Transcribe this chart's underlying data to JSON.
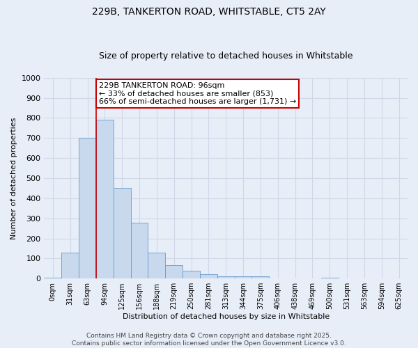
{
  "title": "229B, TANKERTON ROAD, WHITSTABLE, CT5 2AY",
  "subtitle": "Size of property relative to detached houses in Whitstable",
  "xlabel": "Distribution of detached houses by size in Whitstable",
  "ylabel": "Number of detached properties",
  "bar_color": "#c8d9ee",
  "bar_edge_color": "#6699cc",
  "categories": [
    "0sqm",
    "31sqm",
    "63sqm",
    "94sqm",
    "125sqm",
    "156sqm",
    "188sqm",
    "219sqm",
    "250sqm",
    "281sqm",
    "313sqm",
    "344sqm",
    "375sqm",
    "406sqm",
    "438sqm",
    "469sqm",
    "500sqm",
    "531sqm",
    "563sqm",
    "594sqm",
    "625sqm"
  ],
  "values": [
    5,
    130,
    700,
    790,
    450,
    278,
    130,
    68,
    38,
    22,
    10,
    10,
    12,
    0,
    0,
    0,
    5,
    0,
    0,
    0,
    0
  ],
  "ylim": [
    0,
    1000
  ],
  "yticks": [
    0,
    100,
    200,
    300,
    400,
    500,
    600,
    700,
    800,
    900,
    1000
  ],
  "property_line_x": 2.5,
  "annotation_text": "229B TANKERTON ROAD: 96sqm\n← 33% of detached houses are smaller (853)\n66% of semi-detached houses are larger (1,731) →",
  "annotation_box_color": "#ffffff",
  "annotation_box_edge_color": "#cc0000",
  "line_color": "#cc0000",
  "footer_line1": "Contains HM Land Registry data © Crown copyright and database right 2025.",
  "footer_line2": "Contains public sector information licensed under the Open Government Licence v3.0.",
  "background_color": "#e8eef8",
  "grid_color": "#d0d8e8",
  "title_fontsize": 10,
  "subtitle_fontsize": 9,
  "axis_label_fontsize": 8,
  "tick_fontsize": 8,
  "annotation_fontsize": 8,
  "footer_fontsize": 6.5
}
